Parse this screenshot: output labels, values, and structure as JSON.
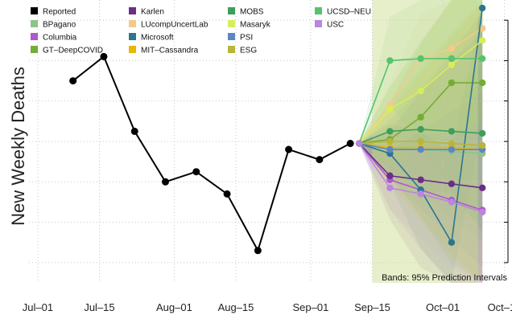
{
  "chart_data": {
    "type": "line",
    "ylabel": "New Weekly Deaths",
    "xlabel": "",
    "title": "",
    "x_ticks": [
      "Jul–01",
      "Jul–15",
      "Aug–01",
      "Aug–15",
      "Sep–01",
      "Sep–15",
      "Oct–01",
      "Oct–15"
    ],
    "x_tick_dates": [
      "2020-07-01",
      "2020-07-15",
      "2020-08-01",
      "2020-08-15",
      "2020-09-01",
      "2020-09-15",
      "2020-10-01",
      "2020-10-15"
    ],
    "xlim": [
      "2020-06-29",
      "2020-10-16"
    ],
    "ylim": [
      0,
      7
    ],
    "y_grid": [
      0.5,
      1.5,
      2.5,
      3.5,
      4.5,
      5.5,
      6.5
    ],
    "grid": true,
    "legend_position": "top-left",
    "annotation": "Bands: 95% Prediction Intervals",
    "forecast_region": {
      "x_start": "2020-09-15",
      "x_end": "2020-10-09",
      "color": "#c9dc8a"
    },
    "reported": {
      "name": "Reported",
      "color": "#000000",
      "x": [
        "2020-07-09",
        "2020-07-16",
        "2020-07-23",
        "2020-07-30",
        "2020-08-06",
        "2020-08-13",
        "2020-08-20",
        "2020-08-27",
        "2020-09-03",
        "2020-09-10"
      ],
      "values": [
        5.0,
        5.6,
        3.75,
        2.5,
        2.75,
        2.2,
        0.8,
        3.3,
        3.05,
        3.45
      ]
    },
    "series": [
      {
        "name": "BPagano",
        "color": "#8dc48a",
        "x": [
          "2020-09-12",
          "2020-09-19",
          "2020-09-26",
          "2020-10-03",
          "2020-10-10"
        ],
        "values": [
          3.45,
          3.35,
          3.3,
          3.25,
          3.2
        ]
      },
      {
        "name": "Columbia",
        "color": "#b057cf",
        "x": [
          "2020-09-12",
          "2020-09-19",
          "2020-09-26",
          "2020-10-03",
          "2020-10-10"
        ],
        "values": [
          3.45,
          2.55,
          2.3,
          2.05,
          1.8
        ]
      },
      {
        "name": "GT–DeepCOVID",
        "color": "#74ad33",
        "x": [
          "2020-09-12",
          "2020-09-19",
          "2020-09-26",
          "2020-10-03",
          "2020-10-10"
        ],
        "values": [
          3.45,
          3.55,
          4.1,
          4.95,
          4.95
        ]
      },
      {
        "name": "Karlen",
        "color": "#6b2e86",
        "x": [
          "2020-09-12",
          "2020-09-19",
          "2020-09-26",
          "2020-10-03",
          "2020-10-10"
        ],
        "values": [
          3.45,
          2.65,
          2.55,
          2.45,
          2.35
        ]
      },
      {
        "name": "LUcompUncertLab",
        "color": "#f5c98a",
        "x": [
          "2020-09-12",
          "2020-09-19",
          "2020-09-26",
          "2020-10-03",
          "2020-10-10"
        ],
        "values": [
          3.45,
          4.4,
          5.55,
          5.8,
          6.3
        ]
      },
      {
        "name": "Microsoft",
        "color": "#2b7590",
        "x": [
          "2020-09-12",
          "2020-09-19",
          "2020-09-26",
          "2020-10-03",
          "2020-10-10"
        ],
        "values": [
          3.45,
          3.2,
          2.3,
          1.0,
          6.8
        ]
      },
      {
        "name": "MIT–Cassandra",
        "color": "#e8b800",
        "x": [
          "2020-09-12",
          "2020-09-19",
          "2020-09-26",
          "2020-10-03",
          "2020-10-10"
        ],
        "values": [
          3.45,
          3.35,
          3.35,
          3.35,
          3.3
        ]
      },
      {
        "name": "MOBS",
        "color": "#3f9f5a",
        "x": [
          "2020-09-12",
          "2020-09-19",
          "2020-09-26",
          "2020-10-03",
          "2020-10-10"
        ],
        "values": [
          3.45,
          3.75,
          3.8,
          3.75,
          3.7
        ]
      },
      {
        "name": "Masaryk",
        "color": "#d8ed5a",
        "x": [
          "2020-09-12",
          "2020-09-19",
          "2020-09-26",
          "2020-10-03",
          "2020-10-10"
        ],
        "values": [
          3.45,
          4.3,
          4.75,
          5.4,
          6.0
        ]
      },
      {
        "name": "PSI",
        "color": "#5b86c8",
        "x": [
          "2020-09-12",
          "2020-09-19",
          "2020-09-26",
          "2020-10-03",
          "2020-10-10"
        ],
        "values": [
          3.45,
          3.3,
          3.3,
          3.3,
          3.3
        ]
      },
      {
        "name": "ESG",
        "color": "#b9b53a",
        "x": [
          "2020-09-12",
          "2020-09-19",
          "2020-09-26",
          "2020-10-03",
          "2020-10-10"
        ],
        "values": [
          3.45,
          3.5,
          3.5,
          3.45,
          3.4
        ]
      },
      {
        "name": "UCSD–NEU",
        "color": "#57c36d",
        "x": [
          "2020-09-12",
          "2020-09-19",
          "2020-09-26",
          "2020-10-03",
          "2020-10-10"
        ],
        "values": [
          3.45,
          5.5,
          5.55,
          5.55,
          5.55
        ]
      },
      {
        "name": "USC",
        "color": "#b986e0",
        "x": [
          "2020-09-12",
          "2020-09-19",
          "2020-09-26",
          "2020-10-03",
          "2020-10-10"
        ],
        "values": [
          3.45,
          2.35,
          2.2,
          2.0,
          1.75
        ]
      }
    ]
  }
}
